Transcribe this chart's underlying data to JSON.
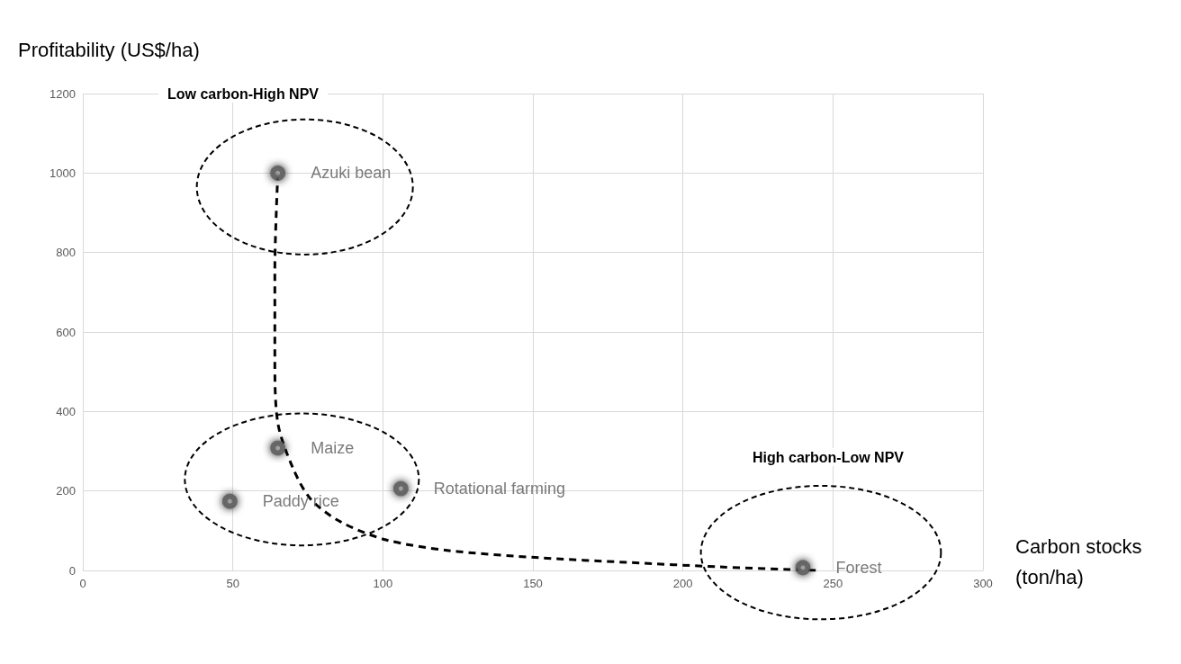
{
  "chart_data": {
    "type": "scatter",
    "xlabel": "Carbon stocks (ton/ha)",
    "ylabel": "Profitability (US$/ha)",
    "annotations": [
      "Low carbon-High NPV",
      "High carbon-Low NPV"
    ],
    "xlim": [
      0,
      300
    ],
    "xticks": [
      0,
      50,
      100,
      150,
      200,
      250,
      300
    ],
    "ylim": [
      0,
      1200
    ],
    "yticks": [
      0,
      200,
      400,
      600,
      800,
      1000,
      1200
    ],
    "grid": true,
    "legend": false,
    "marker": "circle",
    "series": [
      {
        "name": "Azuki bean",
        "color": "#a6a6a6",
        "x": [
          65
        ],
        "values": [
          1000
        ]
      },
      {
        "name": "Maize",
        "color": "#a6a6a6",
        "x": [
          65
        ],
        "values": [
          308
        ]
      },
      {
        "name": "Paddy rice",
        "color": "#a6a6a6",
        "x": [
          49
        ],
        "values": [
          174
        ]
      },
      {
        "name": "Rotational farming",
        "color": "#a6a6a6",
        "x": [
          106
        ],
        "values": [
          206
        ]
      },
      {
        "name": "Forest",
        "color": "#a6a6a6",
        "x": [
          240
        ],
        "values": [
          7
        ]
      },
      {
        "type": "line",
        "color": "#000000",
        "line_style": "dashed",
        "marker": "none",
        "x": [
          65,
          64,
          64,
          65,
          70,
          76,
          86,
          101,
          122,
          152,
          182,
          212,
          236,
          245
        ],
        "values": [
          1000,
          756,
          530,
          371,
          258,
          179,
          122,
          77,
          50,
          32,
          20,
          9,
          2,
          0
        ]
      }
    ]
  }
}
